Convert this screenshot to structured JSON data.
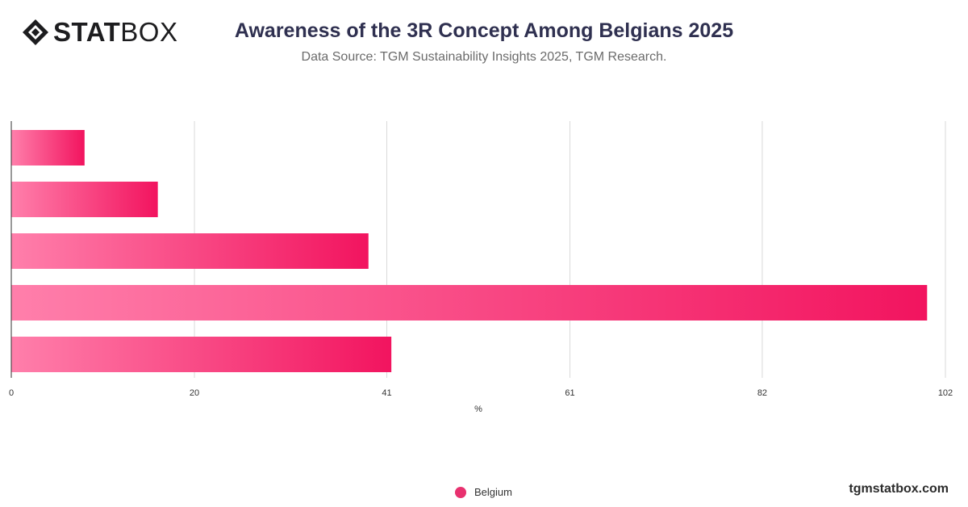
{
  "brand": {
    "logo_bold": "STAT",
    "logo_light": "BOX",
    "site": "tgmstatbox.com"
  },
  "header": {
    "title": "Awareness of the 3R Concept Among Belgians 2025",
    "subtitle": "Data Source: TGM Sustainability Insights 2025, TGM Research."
  },
  "colors": {
    "bar_light": "#ff7fab",
    "bar_dark": "#f2145f",
    "grid": "#d9d9d9",
    "axis": "#333333",
    "legend_dot": "#e8316f"
  },
  "chart_data": {
    "type": "bar",
    "orientation": "horizontal",
    "categories": [
      "",
      "",
      "",
      "",
      ""
    ],
    "series": [
      {
        "name": "Belgium",
        "values": [
          8,
          16,
          39,
          100,
          41.5
        ]
      }
    ],
    "xlabel": "%",
    "ylabel": "",
    "xlim": [
      0,
      102
    ],
    "x_ticks": [
      "0",
      "20",
      "41",
      "61",
      "82",
      "102"
    ],
    "grid": true,
    "legend": "bottom-center"
  }
}
